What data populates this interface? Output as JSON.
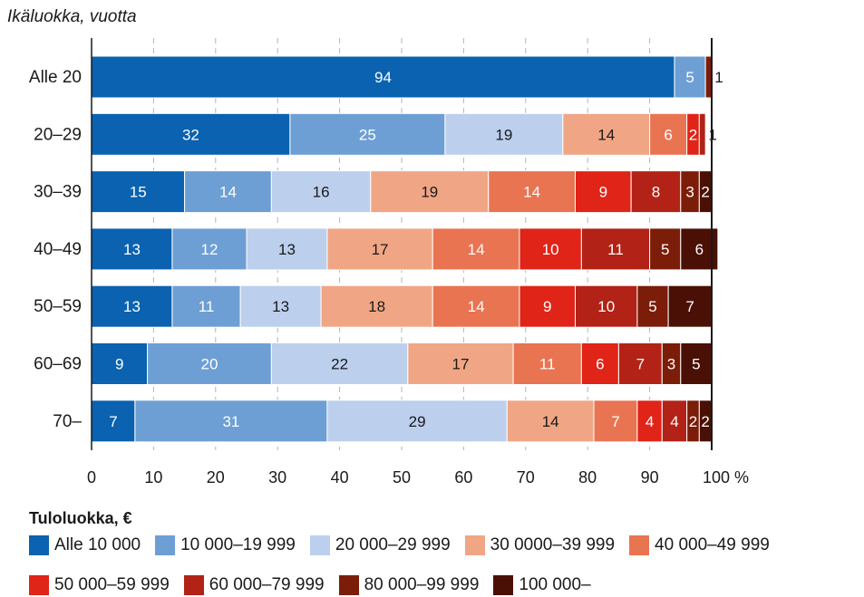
{
  "chart_data": {
    "type": "bar",
    "orientation": "horizontal",
    "stacked": true,
    "y_title": "Ikäluokka, vuotta",
    "categories": [
      "Alle 20",
      "20–29",
      "30–39",
      "40–49",
      "50–59",
      "60–69",
      "70–"
    ],
    "xlim": [
      0,
      100
    ],
    "x_ticks": [
      "0",
      "10",
      "20",
      "30",
      "40",
      "50",
      "60",
      "70",
      "80",
      "90",
      "100 %"
    ],
    "grid": "vertical dashed",
    "legend_title": "Tuloluokka, €",
    "legend_position": "bottom",
    "series": [
      {
        "name": "Alle 10 000",
        "color": "#0a62b0",
        "values": [
          94,
          32,
          15,
          13,
          13,
          9,
          7
        ]
      },
      {
        "name": "10 000–19 999",
        "color": "#6d9fd4",
        "values": [
          5,
          25,
          14,
          12,
          11,
          20,
          31
        ]
      },
      {
        "name": "20 000–29 999",
        "color": "#bccfed",
        "values": [
          0,
          19,
          16,
          13,
          13,
          22,
          29
        ]
      },
      {
        "name": "30 0000–39 999",
        "color": "#f0a684",
        "values": [
          0,
          14,
          19,
          17,
          18,
          17,
          14
        ]
      },
      {
        "name": "40 000–49 999",
        "color": "#e97452",
        "values": [
          0,
          6,
          14,
          14,
          14,
          11,
          7
        ]
      },
      {
        "name": "50 000–59 999",
        "color": "#e02418",
        "values": [
          0,
          2,
          9,
          10,
          9,
          6,
          4
        ]
      },
      {
        "name": "60 000–79 999",
        "color": "#b32216",
        "values": [
          0,
          1,
          8,
          11,
          10,
          7,
          4
        ]
      },
      {
        "name": "80 000–99 999",
        "color": "#7b1d08",
        "values": [
          1,
          0,
          3,
          5,
          5,
          3,
          2
        ]
      },
      {
        "name": "100 000–",
        "color": "#4a1005",
        "values": [
          0,
          0,
          2,
          6,
          7,
          5,
          2
        ]
      }
    ],
    "data_labels": [
      [
        "94",
        "5",
        "",
        "",
        "",
        "",
        "",
        "1",
        ""
      ],
      [
        "32",
        "25",
        "19",
        "14",
        "6",
        "2",
        "1",
        "",
        ""
      ],
      [
        "15",
        "14",
        "16",
        "19",
        "14",
        "9",
        "8",
        "3",
        "2"
      ],
      [
        "13",
        "12",
        "13",
        "17",
        "14",
        "10",
        "11",
        "5",
        "6"
      ],
      [
        "13",
        "11",
        "13",
        "18",
        "14",
        "9",
        "10",
        "5",
        "7"
      ],
      [
        "9",
        "20",
        "22",
        "17",
        "11",
        "6",
        "7",
        "3",
        "5"
      ],
      [
        "7",
        "31",
        "29",
        "14",
        "7",
        "4",
        "4",
        "2",
        "2"
      ]
    ]
  }
}
